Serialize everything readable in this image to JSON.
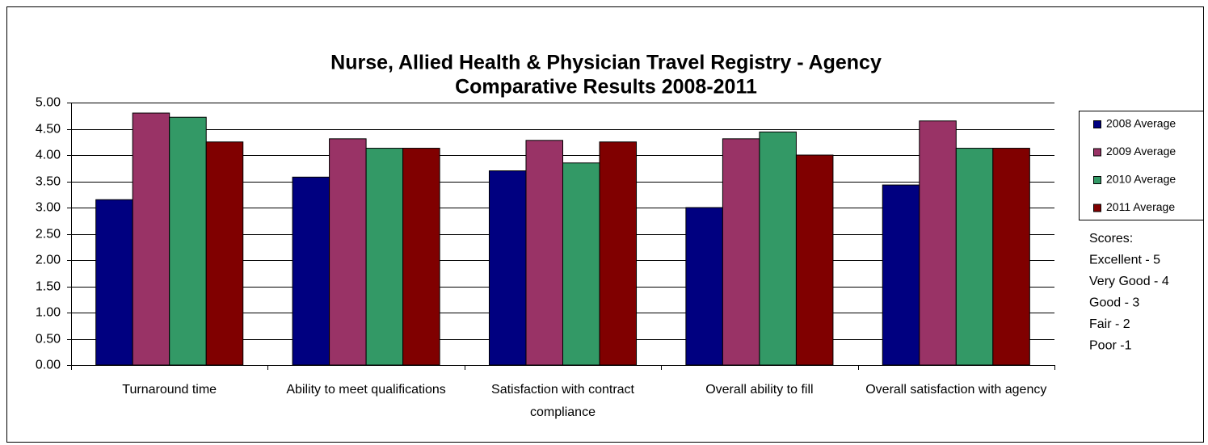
{
  "chart_data": {
    "type": "bar",
    "title": [
      "Nurse, Allied Health & Physician Travel Registry - Agency",
      "Comparative Results 2008-2011"
    ],
    "categories": [
      "Turnaround time",
      "Ability to meet qualifications",
      "Satisfaction with contract compliance",
      "Overall ability to fill",
      "Overall satisfaction with agency"
    ],
    "series": [
      {
        "name": "2008 Average",
        "color": "#000080",
        "values": [
          3.15,
          3.58,
          3.7,
          3.0,
          3.43
        ]
      },
      {
        "name": "2009 Average",
        "color": "#993366",
        "values": [
          4.8,
          4.31,
          4.28,
          4.31,
          4.65
        ]
      },
      {
        "name": "2010 Average",
        "color": "#339966",
        "values": [
          4.72,
          4.13,
          3.85,
          4.44,
          4.13
        ]
      },
      {
        "name": "2011 Average",
        "color": "#800000",
        "values": [
          4.25,
          4.13,
          4.25,
          4.0,
          4.13
        ]
      }
    ],
    "ylim": [
      0,
      5
    ],
    "yticks": [
      {
        "value": 0,
        "label": "0.00"
      },
      {
        "value": 0.5,
        "label": "0.50"
      },
      {
        "value": 1,
        "label": "1.00"
      },
      {
        "value": 1.5,
        "label": "1.50"
      },
      {
        "value": 2,
        "label": "2.00"
      },
      {
        "value": 2.5,
        "label": "2.50"
      },
      {
        "value": 3,
        "label": "3.00"
      },
      {
        "value": 3.5,
        "label": "3.50"
      },
      {
        "value": 4,
        "label": "4.00"
      },
      {
        "value": 4.5,
        "label": "4.50"
      },
      {
        "value": 5,
        "label": "5.00"
      }
    ],
    "grid": true,
    "legend": "right",
    "annotations": [
      "Scores:",
      "Excellent - 5",
      "Very Good - 4",
      "Good - 3",
      "Fair - 2",
      "Poor -1"
    ]
  }
}
